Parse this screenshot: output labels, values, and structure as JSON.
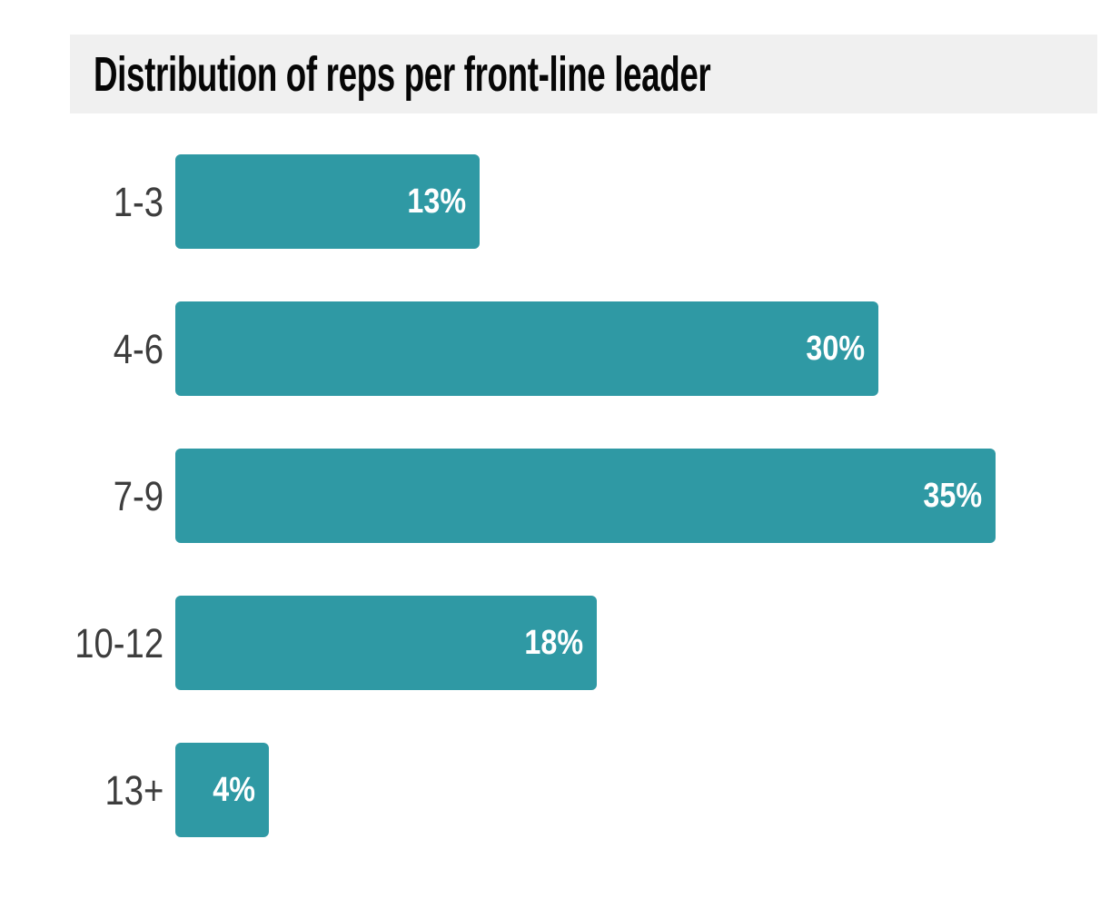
{
  "title": "Distribution of reps per front-line leader",
  "chart_data": {
    "type": "bar",
    "orientation": "horizontal",
    "title": "Distribution of reps per front-line leader",
    "categories": [
      "1-3",
      "4-6",
      "7-9",
      "10-12",
      "13+"
    ],
    "values": [
      13,
      30,
      35,
      18,
      4
    ],
    "value_labels": [
      "13%",
      "30%",
      "35%",
      "18%",
      "4%"
    ],
    "xlabel": "",
    "ylabel": "",
    "xlim": [
      0,
      35
    ],
    "grid": false,
    "legend": false,
    "colors": {
      "bar": "#2f99a4",
      "value_label": "#ffffff",
      "category_label": "#3d3d3d",
      "title_text": "#060606",
      "title_band_background": "#f0f0f0",
      "page_background": "#ffffff"
    }
  }
}
